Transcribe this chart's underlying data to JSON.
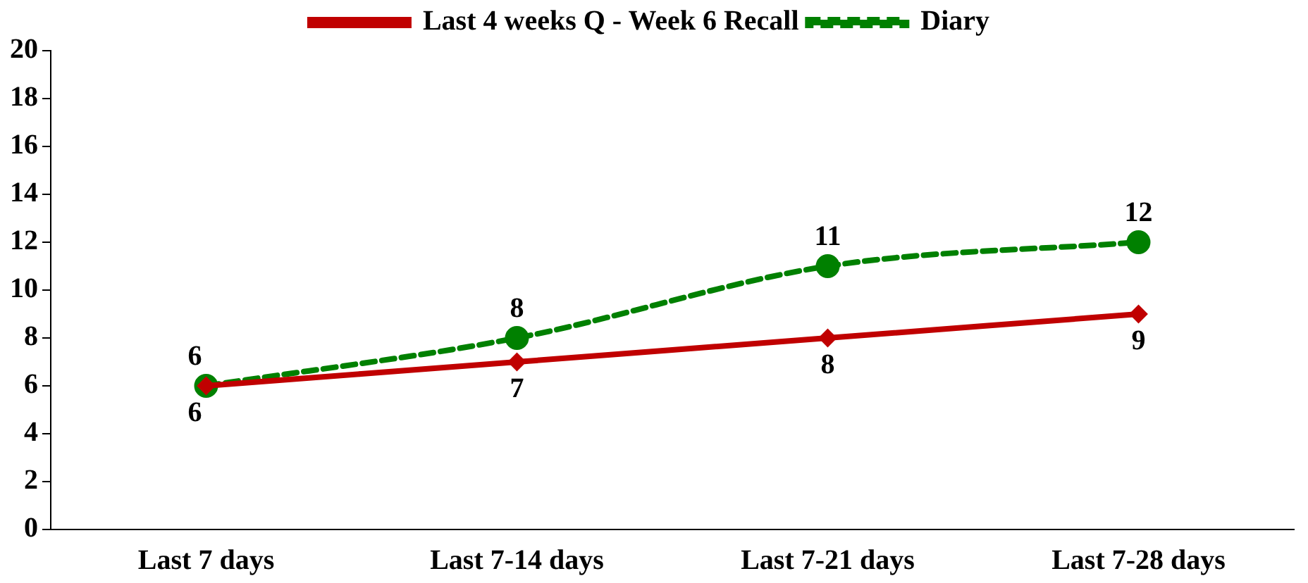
{
  "chart_data": {
    "type": "line",
    "categories": [
      "Last 7 days",
      "Last 7-14 days",
      "Last 7-21 days",
      "Last 7-28 days"
    ],
    "series": [
      {
        "name": "Last 4 weeks Q - Week 6 Recall",
        "color": "#c00000",
        "values": [
          6,
          7,
          8,
          9
        ],
        "marker": "diamond",
        "line_style": "solid"
      },
      {
        "name": "Diary",
        "color": "#008000",
        "values": [
          6,
          8,
          11,
          12
        ],
        "marker": "circle",
        "line_style": "dashed"
      }
    ],
    "ylim": [
      0,
      20
    ],
    "yticks": [
      0,
      2,
      4,
      6,
      8,
      10,
      12,
      14,
      16,
      18,
      20
    ],
    "grid": false,
    "legend": "top",
    "data_labels": true
  }
}
